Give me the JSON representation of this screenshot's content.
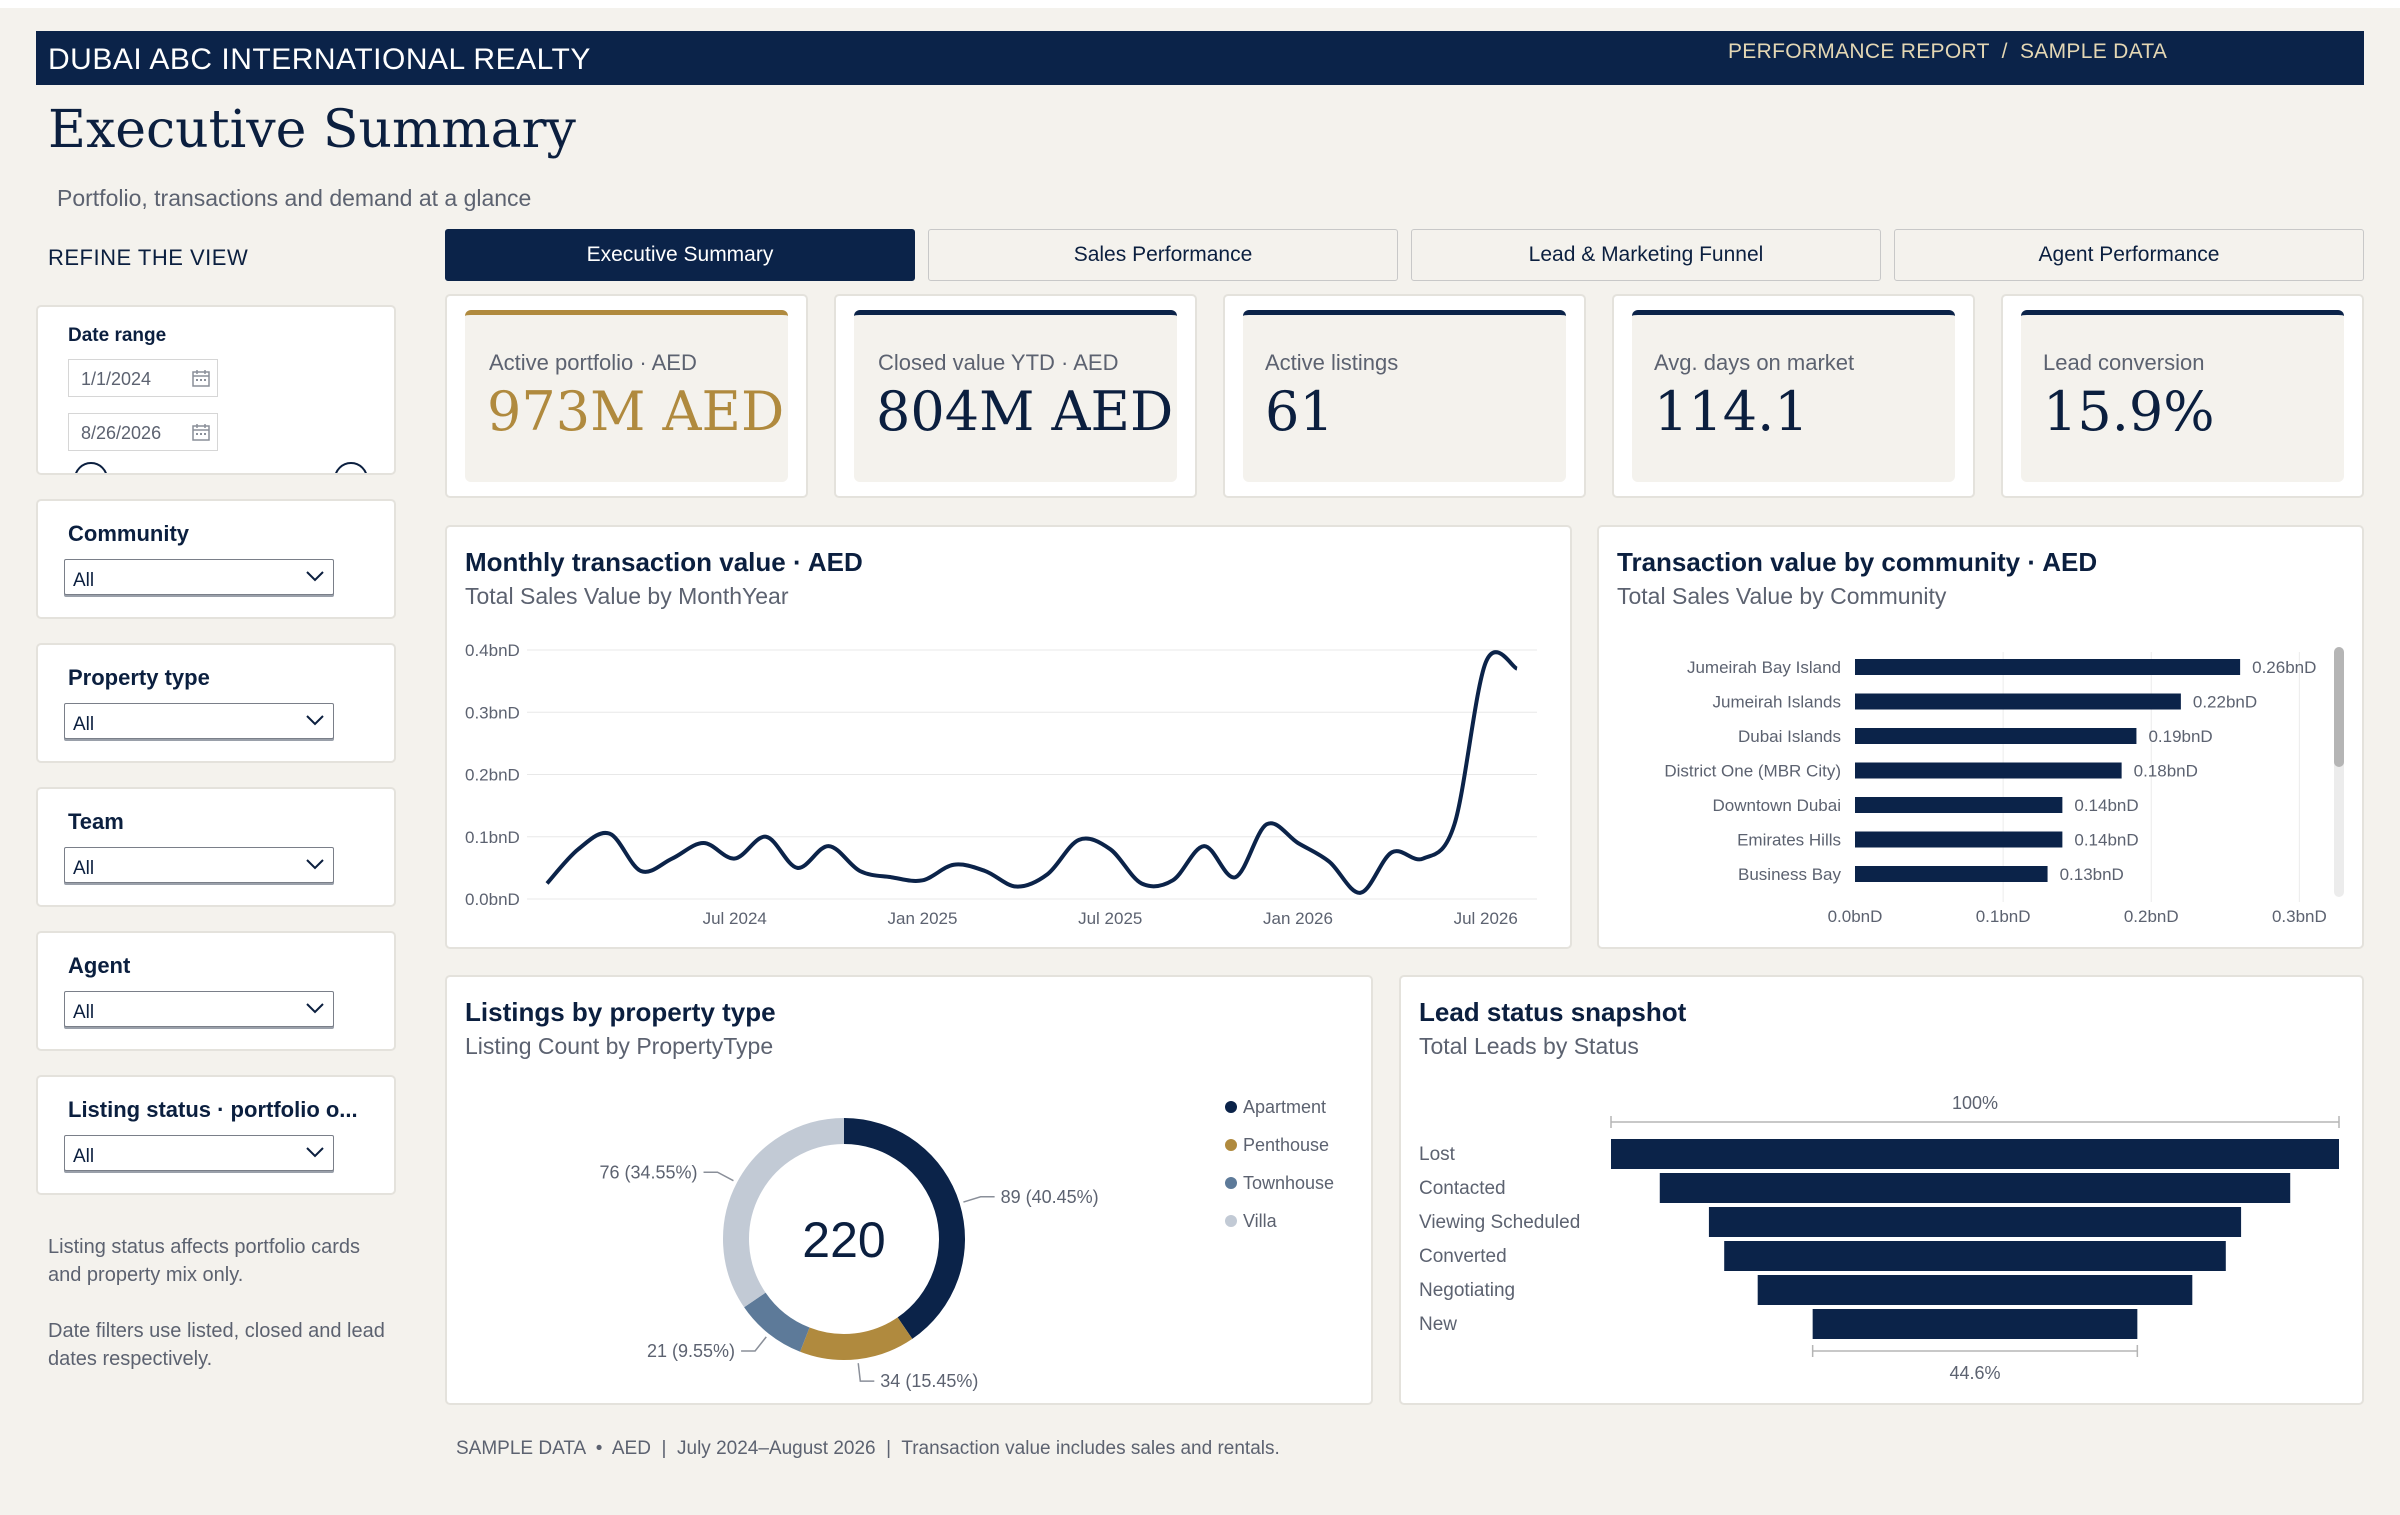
{
  "header": {
    "title": "DUBAI ABC INTERNATIONAL REALTY",
    "right": "PERFORMANCE REPORT  /  SAMPLE DATA"
  },
  "page": {
    "title": "Executive Summary",
    "subtitle": "Portfolio, transactions and demand at a glance"
  },
  "sidebar": {
    "heading": "REFINE THE VIEW",
    "date_range": {
      "label": "Date range",
      "start": "1/1/2024",
      "end": "8/26/2026"
    },
    "slicers": [
      {
        "label": "Community",
        "value": "All"
      },
      {
        "label": "Property type",
        "value": "All"
      },
      {
        "label": "Team",
        "value": "All"
      },
      {
        "label": "Agent",
        "value": "All"
      },
      {
        "label": "Listing status · portfolio o...",
        "value": "All"
      }
    ],
    "note1": "Listing status affects portfolio cards and property mix only.",
    "note2": "Date filters use listed, closed and lead dates respectively."
  },
  "tabs": [
    {
      "label": "Executive Summary",
      "active": true
    },
    {
      "label": "Sales Performance",
      "active": false
    },
    {
      "label": "Lead & Marketing Funnel",
      "active": false
    },
    {
      "label": "Agent Performance",
      "active": false
    }
  ],
  "kpis": [
    {
      "label": "Active portfolio · AED",
      "value": "973M AED",
      "accent": "#b08a3e"
    },
    {
      "label": "Closed value YTD · AED",
      "value": "804M AED",
      "accent": "#0b2349"
    },
    {
      "label": "Active listings",
      "value": "61",
      "accent": "#0b2349"
    },
    {
      "label": "Avg. days on market",
      "value": "114.1",
      "accent": "#0b2349"
    },
    {
      "label": "Lead conversion",
      "value": "15.9%",
      "accent": "#0b2349"
    }
  ],
  "colors": {
    "navy": "#0b2349",
    "gold": "#b08a3e",
    "steel": "#5d7a99",
    "light": "#c2cad5"
  },
  "line_chart": {
    "title": "Monthly transaction value · AED",
    "subtitle": "Total Sales Value by MonthYear"
  },
  "bar_chart": {
    "title": "Transaction value by community · AED",
    "subtitle": "Total Sales Value by Community"
  },
  "donut_chart": {
    "title": "Listings by property type",
    "subtitle": "Listing Count by PropertyType",
    "total": "220"
  },
  "funnel_chart": {
    "title": "Lead status snapshot",
    "subtitle": "Total Leads by Status",
    "top_label": "100%",
    "bottom_label": "44.6%"
  },
  "footer": "SAMPLE DATA  •  AED  |  July 2024–August 2026  |  Transaction value includes sales and rentals.",
  "chart_data": [
    {
      "type": "line",
      "y_tick_labels": [
        "0.0bnD",
        "0.1bnD",
        "0.2bnD",
        "0.3bnD",
        "0.4bnD"
      ],
      "x_tick_labels": [
        "Jul 2024",
        "Jan 2025",
        "Jul 2025",
        "Jan 2026",
        "Jul 2026"
      ],
      "ylim": [
        0,
        0.4
      ],
      "x": [
        "2024-01",
        "2024-02",
        "2024-03",
        "2024-04",
        "2024-05",
        "2024-06",
        "2024-07",
        "2024-08",
        "2024-09",
        "2024-10",
        "2024-11",
        "2024-12",
        "2025-01",
        "2025-02",
        "2025-03",
        "2025-04",
        "2025-05",
        "2025-06",
        "2025-07",
        "2025-08",
        "2025-09",
        "2025-10",
        "2025-11",
        "2025-12",
        "2026-01",
        "2026-02",
        "2026-03",
        "2026-04",
        "2026-05",
        "2026-06",
        "2026-07",
        "2026-08"
      ],
      "series": [
        {
          "values": [
            0.025,
            0.08,
            0.105,
            0.045,
            0.065,
            0.09,
            0.065,
            0.1,
            0.05,
            0.085,
            0.045,
            0.035,
            0.03,
            0.055,
            0.045,
            0.02,
            0.04,
            0.095,
            0.08,
            0.025,
            0.03,
            0.085,
            0.035,
            0.12,
            0.09,
            0.06,
            0.01,
            0.075,
            0.065,
            0.12,
            0.38,
            0.37
          ]
        }
      ]
    },
    {
      "type": "bar",
      "orientation": "horizontal",
      "categories": [
        "Jumeirah Bay Island",
        "Jumeirah Islands",
        "Dubai Islands",
        "District One (MBR City)",
        "Downtown Dubai",
        "Emirates Hills",
        "Business Bay"
      ],
      "values": [
        0.26,
        0.22,
        0.19,
        0.18,
        0.14,
        0.14,
        0.13
      ],
      "data_labels": [
        "0.26bnD",
        "0.22bnD",
        "0.19bnD",
        "0.18bnD",
        "0.14bnD",
        "0.14bnD",
        "0.13bnD"
      ],
      "x_tick_labels": [
        "0.0bnD",
        "0.1bnD",
        "0.2bnD",
        "0.3bnD"
      ],
      "xlim": [
        0,
        0.32
      ]
    },
    {
      "type": "pie",
      "categories": [
        "Apartment",
        "Penthouse",
        "Townhouse",
        "Villa"
      ],
      "values": [
        89,
        34,
        21,
        76
      ],
      "data_labels": [
        "89 (40.45%)",
        "34 (15.45%)",
        "21 (9.55%)",
        "76 (34.55%)"
      ],
      "colors": [
        "#0b2349",
        "#b08a3e",
        "#5d7a99",
        "#c2cad5"
      ],
      "legend": "right"
    },
    {
      "type": "bar",
      "orientation": "funnel",
      "categories": [
        "Lost",
        "Contacted",
        "Viewing Scheduled",
        "Converted",
        "Negotiating",
        "New"
      ],
      "values": [
        100,
        86.6,
        73.1,
        68.9,
        59.7,
        44.6
      ]
    }
  ]
}
